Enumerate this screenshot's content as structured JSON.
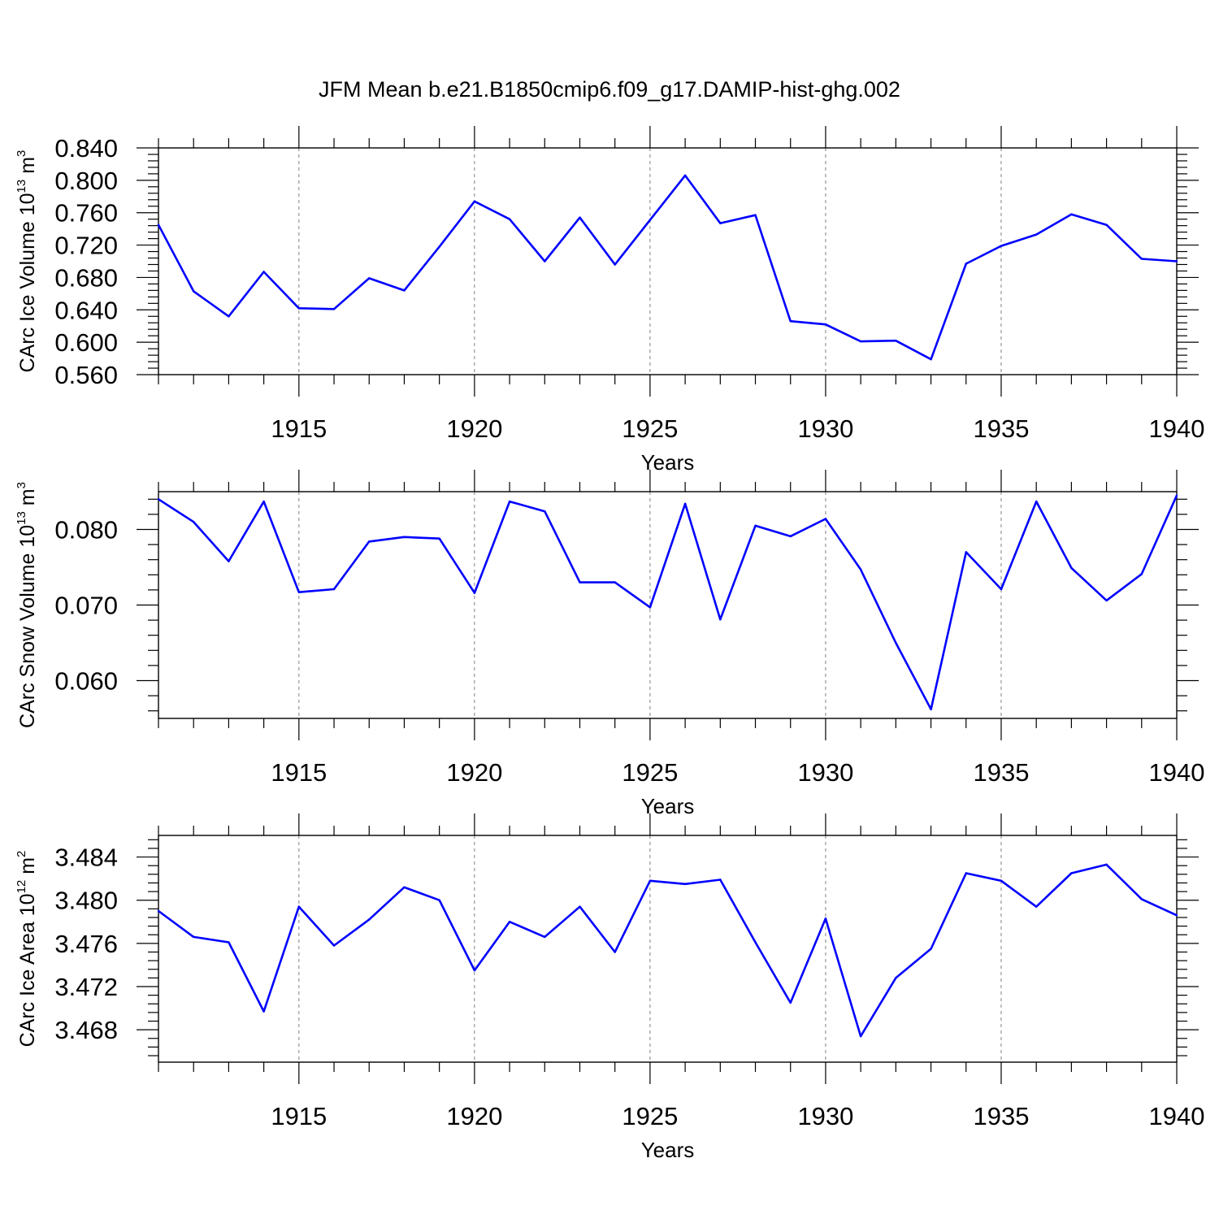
{
  "title": "JFM Mean b.e21.B1850cmip6.f09_g17.DAMIP-hist-ghg.002",
  "colors": {
    "series": "#0000ff",
    "axis": "#000000",
    "grid": "#808080"
  },
  "chart_data": [
    {
      "type": "line",
      "ylabel": {
        "text": "CArc Ice Volume 10",
        "exp": "13",
        "unit": " m",
        "unit_exp": "3"
      },
      "xlabel": "Years",
      "xlim": [
        1911,
        1940
      ],
      "ylim": [
        0.56,
        0.84
      ],
      "yticks": [
        0.56,
        0.6,
        0.64,
        0.68,
        0.72,
        0.76,
        0.8,
        0.84
      ],
      "ytick_labels": [
        "0.560",
        "0.600",
        "0.640",
        "0.680",
        "0.720",
        "0.760",
        "0.800",
        "0.840"
      ],
      "yminor_step": 0.008,
      "xticks": [
        1915,
        1920,
        1925,
        1930,
        1935,
        1940
      ],
      "xtick_labels": [
        "1915",
        "1920",
        "1925",
        "1930",
        "1935",
        "1940"
      ],
      "x": [
        1911,
        1912,
        1913,
        1914,
        1915,
        1916,
        1917,
        1918,
        1919,
        1920,
        1921,
        1922,
        1923,
        1924,
        1925,
        1926,
        1927,
        1928,
        1929,
        1930,
        1931,
        1932,
        1933,
        1934,
        1935,
        1936,
        1937,
        1938,
        1939,
        1940
      ],
      "series": [
        {
          "name": "CArc Ice Volume",
          "values": [
            0.745,
            0.663,
            0.632,
            0.687,
            0.642,
            0.641,
            0.679,
            0.664,
            0.718,
            0.774,
            0.752,
            0.7,
            0.754,
            0.696,
            0.751,
            0.806,
            0.747,
            0.757,
            0.626,
            0.622,
            0.601,
            0.602,
            0.579,
            0.697,
            0.719,
            0.733,
            0.758,
            0.745,
            0.703,
            0.7
          ]
        }
      ]
    },
    {
      "type": "line",
      "ylabel": {
        "text": "CArc Snow Volume 10",
        "exp": "13",
        "unit": " m",
        "unit_exp": "3"
      },
      "xlabel": "Years",
      "xlim": [
        1911,
        1940
      ],
      "ylim": [
        0.055,
        0.085
      ],
      "yticks": [
        0.06,
        0.07,
        0.08
      ],
      "ytick_labels": [
        "0.060",
        "0.070",
        "0.080"
      ],
      "yminor_step": 0.002,
      "xticks": [
        1915,
        1920,
        1925,
        1930,
        1935,
        1940
      ],
      "xtick_labels": [
        "1915",
        "1920",
        "1925",
        "1930",
        "1935",
        "1940"
      ],
      "x": [
        1911,
        1912,
        1913,
        1914,
        1915,
        1916,
        1917,
        1918,
        1919,
        1920,
        1921,
        1922,
        1923,
        1924,
        1925,
        1926,
        1927,
        1928,
        1929,
        1930,
        1931,
        1932,
        1933,
        1934,
        1935,
        1936,
        1937,
        1938,
        1939,
        1940
      ],
      "series": [
        {
          "name": "CArc Snow Volume",
          "values": [
            0.084,
            0.081,
            0.0758,
            0.0837,
            0.0717,
            0.0721,
            0.0784,
            0.079,
            0.0788,
            0.0716,
            0.0837,
            0.0824,
            0.073,
            0.073,
            0.0697,
            0.0834,
            0.0681,
            0.0805,
            0.0791,
            0.0814,
            0.0747,
            0.065,
            0.0562,
            0.077,
            0.0721,
            0.0837,
            0.0749,
            0.0706,
            0.0741,
            0.0845
          ]
        }
      ]
    },
    {
      "type": "line",
      "ylabel": {
        "text": "CArc Ice Area 10",
        "exp": "12",
        "unit": " m",
        "unit_exp": "2"
      },
      "xlabel": "Years",
      "xlim": [
        1911,
        1940
      ],
      "ylim": [
        3.465,
        3.486
      ],
      "yticks": [
        3.468,
        3.472,
        3.476,
        3.48,
        3.484
      ],
      "ytick_labels": [
        "3.468",
        "3.472",
        "3.476",
        "3.480",
        "3.484"
      ],
      "yminor_step": 0.0008,
      "xticks": [
        1915,
        1920,
        1925,
        1930,
        1935,
        1940
      ],
      "xtick_labels": [
        "1915",
        "1920",
        "1925",
        "1930",
        "1935",
        "1940"
      ],
      "x": [
        1911,
        1912,
        1913,
        1914,
        1915,
        1916,
        1917,
        1918,
        1919,
        1920,
        1921,
        1922,
        1923,
        1924,
        1925,
        1926,
        1927,
        1928,
        1929,
        1930,
        1931,
        1932,
        1933,
        1934,
        1935,
        1936,
        1937,
        1938,
        1939,
        1940
      ],
      "series": [
        {
          "name": "CArc Ice Area",
          "values": [
            3.479,
            3.4766,
            3.4761,
            3.4697,
            3.4794,
            3.4758,
            3.4782,
            3.4812,
            3.48,
            3.4735,
            3.478,
            3.4766,
            3.4794,
            3.4752,
            3.4818,
            3.4815,
            3.4819,
            3.4761,
            3.4705,
            3.4783,
            3.4674,
            3.4728,
            3.4755,
            3.4825,
            3.4818,
            3.4794,
            3.4825,
            3.4833,
            3.4801,
            3.4786
          ]
        }
      ]
    }
  ]
}
